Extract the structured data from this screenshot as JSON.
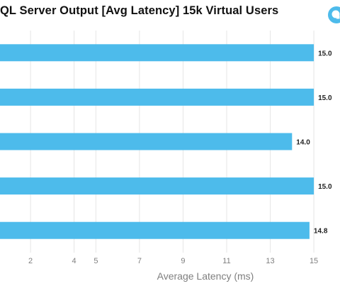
{
  "title": "QL Server Output [Avg Latency] 15k Virtual Users",
  "logo": {
    "icon": "brand-logo-icon",
    "color": "#4dbbeb"
  },
  "chart_data": {
    "type": "bar",
    "orientation": "horizontal",
    "categories": [
      "",
      "",
      "",
      "",
      ""
    ],
    "values": [
      15.0,
      15.0,
      14.0,
      15.0,
      14.8
    ],
    "data_labels": [
      "15.0",
      "15.0",
      "14.0",
      "15.0",
      "14.8"
    ],
    "xlabel": "Average Latency (ms)",
    "ylabel": "",
    "x_ticks": [
      "2",
      "4",
      "5",
      "7",
      "9",
      "11",
      "13",
      "15"
    ],
    "xlim": [
      0.6,
      16.2
    ],
    "grid": true,
    "bar_color": "#4dbbeb",
    "grid_color": "#e6e6e6",
    "label_color": "#7f7f7f"
  }
}
